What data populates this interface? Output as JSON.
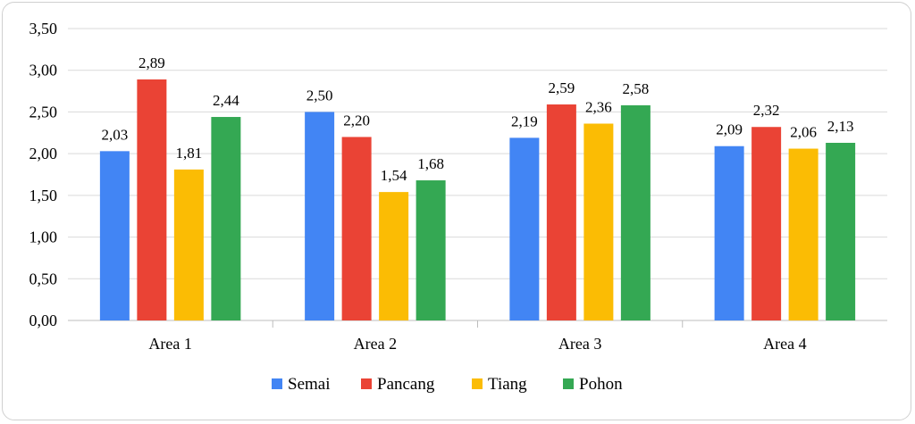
{
  "chart_data": {
    "type": "bar",
    "title": "",
    "xlabel": "",
    "ylabel": "",
    "categories": [
      "Area 1",
      "Area 2",
      "Area 3",
      "Area 4"
    ],
    "series": [
      {
        "name": "Semai",
        "color": "#4285F4",
        "values": [
          2.03,
          2.5,
          2.19,
          2.09
        ],
        "labels": [
          "2,03",
          "2,50",
          "2,19",
          "2,09"
        ]
      },
      {
        "name": "Pancang",
        "color": "#EA4335",
        "values": [
          2.89,
          2.2,
          2.59,
          2.32
        ],
        "labels": [
          "2,89",
          "2,20",
          "2,59",
          "2,32"
        ]
      },
      {
        "name": "Tiang",
        "color": "#FBBC04",
        "values": [
          1.81,
          1.54,
          2.36,
          2.06
        ],
        "labels": [
          "1,81",
          "1,54",
          "2,36",
          "2,06"
        ]
      },
      {
        "name": "Pohon",
        "color": "#34A853",
        "values": [
          2.44,
          1.68,
          2.58,
          2.13
        ],
        "labels": [
          "2,44",
          "1,68",
          "2,58",
          "2,13"
        ]
      }
    ],
    "ylim": [
      0,
      3.5
    ],
    "yticks": [
      0,
      0.5,
      1.0,
      1.5,
      2.0,
      2.5,
      3.0,
      3.5
    ],
    "ytick_labels": [
      "0,00",
      "0,50",
      "1,00",
      "1,50",
      "2,00",
      "2,50",
      "3,00",
      "3,50"
    ],
    "grid": true,
    "legend": "bottom"
  }
}
